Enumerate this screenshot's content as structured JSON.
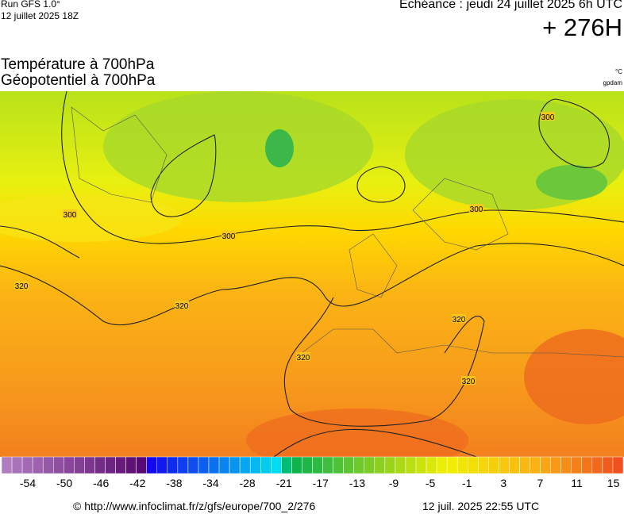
{
  "header": {
    "run": "Run GFS 1.0°",
    "date": "12 juillet 2025 18Z",
    "echeance": "Echéance : jeudi 24 juillet 2025 6h UTC",
    "lead": "+ 276H",
    "title1": "Température à 700hPa",
    "title2": "Géopotentiel à 700hPa",
    "unit1": "°C",
    "unit2": "gpdam"
  },
  "map": {
    "contour_labels": [
      "300",
      "300",
      "300",
      "300",
      "320",
      "320",
      "320",
      "320",
      "320"
    ]
  },
  "colorbar": {
    "labels": [
      -54,
      -50,
      -46,
      -42,
      -38,
      -34,
      -28,
      -21,
      -17,
      -13,
      -9,
      -5,
      -1,
      3,
      7,
      11,
      15
    ]
  },
  "footer": {
    "source": "© http://www.infoclimat.fr/z/gfs/europe/700_2/276",
    "generated": "12 juil. 2025 22:55 UTC"
  }
}
